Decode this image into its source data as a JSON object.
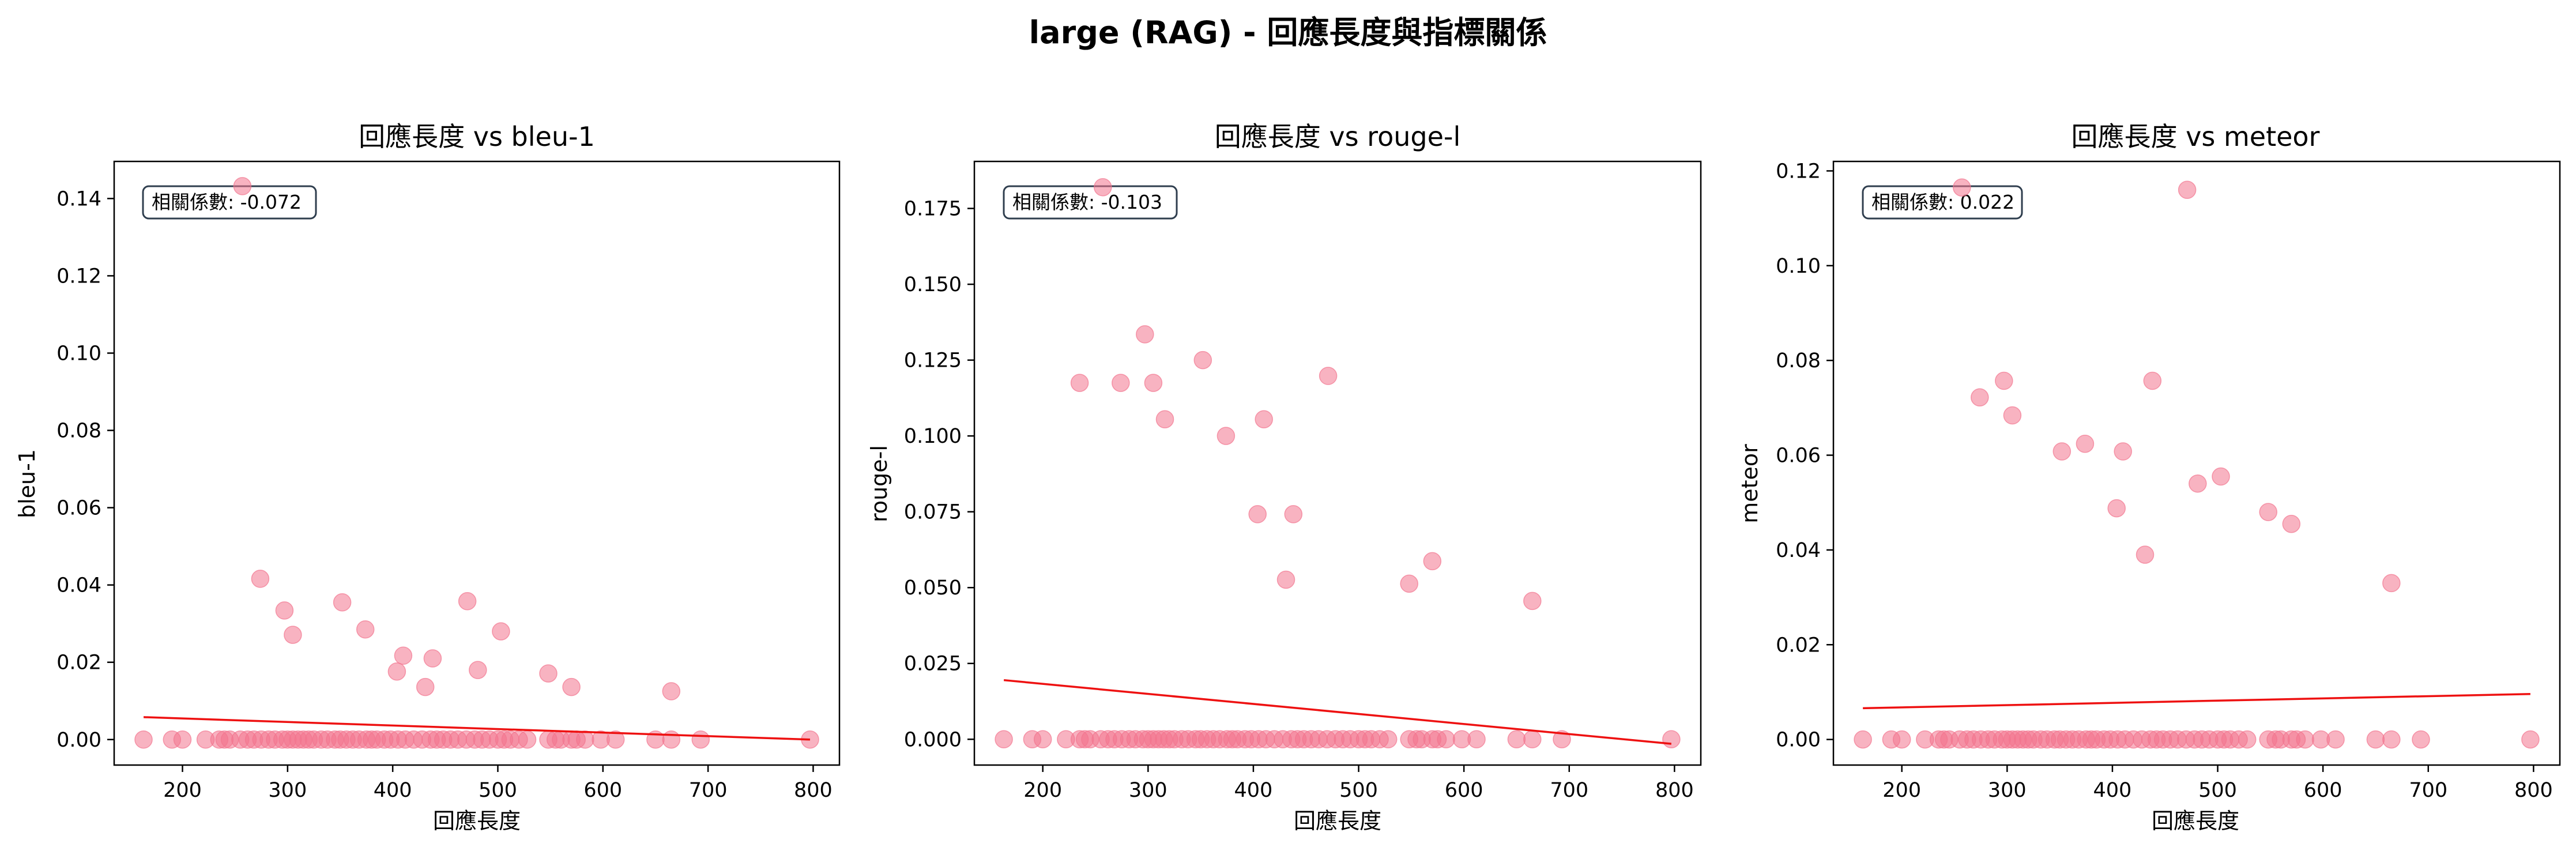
{
  "suptitle": "large (RAG) - 回應長度與指標關係",
  "colors": {
    "points": "#f2758e",
    "trend": "#ee1111",
    "axes": "#000000",
    "box_edge": "#2f3e4e"
  },
  "chart_data": [
    {
      "type": "scatter",
      "title": "回應長度 vs bleu-1",
      "xlabel": "回應長度",
      "ylabel": "bleu-1",
      "corr_label": "相關係數: -0.072",
      "xlim": [
        135,
        825
      ],
      "ylim": [
        -0.0066,
        0.1496
      ],
      "xticks": [
        200,
        300,
        400,
        500,
        600,
        700,
        800
      ],
      "yticks": [
        0.0,
        0.02,
        0.04,
        0.06,
        0.08,
        0.1,
        0.12,
        0.14
      ],
      "ytick_labels": [
        "0.00",
        "0.02",
        "0.04",
        "0.06",
        "0.08",
        "0.10",
        "0.12",
        "0.14"
      ],
      "trend": [
        [
          163,
          0.0058
        ],
        [
          797,
          0.0
        ]
      ],
      "points": [
        [
          163,
          0
        ],
        [
          190,
          0
        ],
        [
          200,
          0
        ],
        [
          222,
          0
        ],
        [
          235,
          0
        ],
        [
          240,
          0
        ],
        [
          245,
          0
        ],
        [
          255,
          0
        ],
        [
          262,
          0
        ],
        [
          268,
          0
        ],
        [
          275,
          0
        ],
        [
          282,
          0
        ],
        [
          288,
          0
        ],
        [
          295,
          0
        ],
        [
          300,
          0
        ],
        [
          305,
          0
        ],
        [
          310,
          0
        ],
        [
          315,
          0
        ],
        [
          320,
          0
        ],
        [
          325,
          0
        ],
        [
          332,
          0
        ],
        [
          338,
          0
        ],
        [
          345,
          0
        ],
        [
          350,
          0
        ],
        [
          356,
          0
        ],
        [
          362,
          0
        ],
        [
          368,
          0
        ],
        [
          375,
          0
        ],
        [
          380,
          0
        ],
        [
          385,
          0
        ],
        [
          392,
          0
        ],
        [
          398,
          0
        ],
        [
          405,
          0
        ],
        [
          412,
          0
        ],
        [
          420,
          0
        ],
        [
          428,
          0
        ],
        [
          436,
          0
        ],
        [
          442,
          0
        ],
        [
          448,
          0
        ],
        [
          455,
          0
        ],
        [
          462,
          0
        ],
        [
          470,
          0
        ],
        [
          478,
          0
        ],
        [
          485,
          0
        ],
        [
          492,
          0
        ],
        [
          500,
          0
        ],
        [
          506,
          0
        ],
        [
          512,
          0
        ],
        [
          520,
          0
        ],
        [
          528,
          0
        ],
        [
          548,
          0
        ],
        [
          555,
          0
        ],
        [
          560,
          0
        ],
        [
          570,
          0
        ],
        [
          575,
          0
        ],
        [
          583,
          0
        ],
        [
          598,
          0
        ],
        [
          612,
          0
        ],
        [
          650,
          0
        ],
        [
          665,
          0
        ],
        [
          693,
          0
        ],
        [
          797,
          0
        ],
        [
          257,
          0.1432
        ],
        [
          274,
          0.0416
        ],
        [
          297,
          0.0334
        ],
        [
          305,
          0.0271
        ],
        [
          352,
          0.0355
        ],
        [
          374,
          0.0285
        ],
        [
          404,
          0.0176
        ],
        [
          410,
          0.0217
        ],
        [
          431,
          0.0136
        ],
        [
          438,
          0.021
        ],
        [
          471,
          0.0358
        ],
        [
          481,
          0.018
        ],
        [
          503,
          0.028
        ],
        [
          548,
          0.0171
        ],
        [
          570,
          0.0136
        ],
        [
          665,
          0.0125
        ]
      ]
    },
    {
      "type": "scatter",
      "title": "回應長度 vs rouge-l",
      "xlabel": "回應長度",
      "ylabel": "rouge-l",
      "corr_label": "相關係數: -0.103",
      "xlim": [
        135,
        825
      ],
      "ylim": [
        -0.0085,
        0.1905
      ],
      "xticks": [
        200,
        300,
        400,
        500,
        600,
        700,
        800
      ],
      "yticks": [
        0.0,
        0.025,
        0.05,
        0.075,
        0.1,
        0.125,
        0.15,
        0.175
      ],
      "ytick_labels": [
        "0.000",
        "0.025",
        "0.050",
        "0.075",
        "0.100",
        "0.125",
        "0.150",
        "0.175"
      ],
      "trend": [
        [
          163,
          0.0195
        ],
        [
          797,
          -0.0015
        ]
      ],
      "points": [
        [
          163,
          0
        ],
        [
          190,
          0
        ],
        [
          200,
          0
        ],
        [
          222,
          0
        ],
        [
          235,
          0
        ],
        [
          240,
          0
        ],
        [
          245,
          0
        ],
        [
          255,
          0
        ],
        [
          262,
          0
        ],
        [
          268,
          0
        ],
        [
          275,
          0
        ],
        [
          282,
          0
        ],
        [
          288,
          0
        ],
        [
          295,
          0
        ],
        [
          300,
          0
        ],
        [
          305,
          0
        ],
        [
          310,
          0
        ],
        [
          315,
          0
        ],
        [
          320,
          0
        ],
        [
          325,
          0
        ],
        [
          332,
          0
        ],
        [
          338,
          0
        ],
        [
          345,
          0
        ],
        [
          350,
          0
        ],
        [
          356,
          0
        ],
        [
          362,
          0
        ],
        [
          368,
          0
        ],
        [
          375,
          0
        ],
        [
          380,
          0
        ],
        [
          385,
          0
        ],
        [
          392,
          0
        ],
        [
          398,
          0
        ],
        [
          405,
          0
        ],
        [
          412,
          0
        ],
        [
          420,
          0
        ],
        [
          428,
          0
        ],
        [
          436,
          0
        ],
        [
          442,
          0
        ],
        [
          448,
          0
        ],
        [
          455,
          0
        ],
        [
          462,
          0
        ],
        [
          470,
          0
        ],
        [
          478,
          0
        ],
        [
          485,
          0
        ],
        [
          492,
          0
        ],
        [
          500,
          0
        ],
        [
          506,
          0
        ],
        [
          512,
          0
        ],
        [
          520,
          0
        ],
        [
          528,
          0
        ],
        [
          548,
          0
        ],
        [
          555,
          0
        ],
        [
          560,
          0
        ],
        [
          570,
          0
        ],
        [
          575,
          0
        ],
        [
          583,
          0
        ],
        [
          598,
          0
        ],
        [
          612,
          0
        ],
        [
          650,
          0
        ],
        [
          665,
          0
        ],
        [
          693,
          0
        ],
        [
          797,
          0
        ],
        [
          257,
          0.182
        ],
        [
          235,
          0.1175
        ],
        [
          274,
          0.1175
        ],
        [
          297,
          0.1335
        ],
        [
          305,
          0.1175
        ],
        [
          316,
          0.1055
        ],
        [
          352,
          0.125
        ],
        [
          374,
          0.1
        ],
        [
          404,
          0.0742
        ],
        [
          410,
          0.1055
        ],
        [
          431,
          0.0526
        ],
        [
          438,
          0.0742
        ],
        [
          471,
          0.1198
        ],
        [
          548,
          0.0513
        ],
        [
          570,
          0.0587
        ],
        [
          665,
          0.0456
        ]
      ]
    },
    {
      "type": "scatter",
      "title": "回應長度 vs meteor",
      "xlabel": "回應長度",
      "ylabel": "meteor",
      "corr_label": "相關係數: 0.022",
      "xlim": [
        135,
        825
      ],
      "ylim": [
        -0.0054,
        0.122
      ],
      "xticks": [
        200,
        300,
        400,
        500,
        600,
        700,
        800
      ],
      "yticks": [
        0.0,
        0.02,
        0.04,
        0.06,
        0.08,
        0.1,
        0.12
      ],
      "ytick_labels": [
        "0.00",
        "0.02",
        "0.04",
        "0.06",
        "0.08",
        "0.10",
        "0.12"
      ],
      "trend": [
        [
          163,
          0.0066
        ],
        [
          797,
          0.0096
        ]
      ],
      "points": [
        [
          163,
          0
        ],
        [
          190,
          0
        ],
        [
          200,
          0
        ],
        [
          222,
          0
        ],
        [
          235,
          0
        ],
        [
          240,
          0
        ],
        [
          245,
          0
        ],
        [
          255,
          0
        ],
        [
          262,
          0
        ],
        [
          268,
          0
        ],
        [
          275,
          0
        ],
        [
          282,
          0
        ],
        [
          288,
          0
        ],
        [
          295,
          0
        ],
        [
          300,
          0
        ],
        [
          305,
          0
        ],
        [
          310,
          0
        ],
        [
          315,
          0
        ],
        [
          320,
          0
        ],
        [
          325,
          0
        ],
        [
          332,
          0
        ],
        [
          338,
          0
        ],
        [
          345,
          0
        ],
        [
          350,
          0
        ],
        [
          356,
          0
        ],
        [
          362,
          0
        ],
        [
          368,
          0
        ],
        [
          375,
          0
        ],
        [
          380,
          0
        ],
        [
          385,
          0
        ],
        [
          392,
          0
        ],
        [
          398,
          0
        ],
        [
          405,
          0
        ],
        [
          412,
          0
        ],
        [
          420,
          0
        ],
        [
          428,
          0
        ],
        [
          436,
          0
        ],
        [
          442,
          0
        ],
        [
          448,
          0
        ],
        [
          455,
          0
        ],
        [
          462,
          0
        ],
        [
          470,
          0
        ],
        [
          478,
          0
        ],
        [
          485,
          0
        ],
        [
          492,
          0
        ],
        [
          500,
          0
        ],
        [
          506,
          0
        ],
        [
          512,
          0
        ],
        [
          520,
          0
        ],
        [
          528,
          0
        ],
        [
          548,
          0
        ],
        [
          555,
          0
        ],
        [
          560,
          0
        ],
        [
          570,
          0
        ],
        [
          575,
          0
        ],
        [
          583,
          0
        ],
        [
          598,
          0
        ],
        [
          612,
          0
        ],
        [
          650,
          0
        ],
        [
          665,
          0
        ],
        [
          693,
          0
        ],
        [
          797,
          0
        ],
        [
          257,
          0.1165
        ],
        [
          274,
          0.0722
        ],
        [
          297,
          0.0757
        ],
        [
          305,
          0.0684
        ],
        [
          352,
          0.0608
        ],
        [
          374,
          0.0624
        ],
        [
          404,
          0.0488
        ],
        [
          410,
          0.0608
        ],
        [
          431,
          0.039
        ],
        [
          438,
          0.0757
        ],
        [
          471,
          0.116
        ],
        [
          481,
          0.054
        ],
        [
          503,
          0.0555
        ],
        [
          548,
          0.048
        ],
        [
          570,
          0.0455
        ],
        [
          665,
          0.033
        ]
      ]
    }
  ]
}
